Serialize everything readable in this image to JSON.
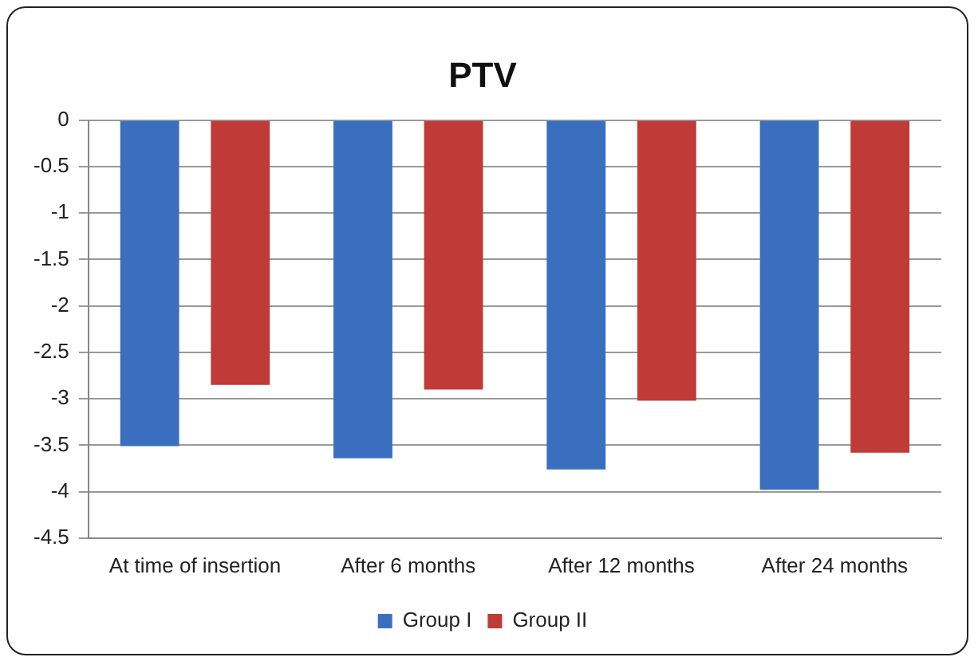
{
  "chart_data": {
    "type": "bar",
    "title": "PTV",
    "categories": [
      "At time of insertion",
      "After 6 months",
      "After 12 months",
      "After 24 months"
    ],
    "series": [
      {
        "name": "Group I",
        "color": "#3a6fbf",
        "values": [
          -3.51,
          -3.64,
          -3.76,
          -3.98
        ]
      },
      {
        "name": "Group II",
        "color": "#c03a38",
        "values": [
          -2.85,
          -2.9,
          -3.02,
          -3.58
        ]
      }
    ],
    "ylim": [
      -4.5,
      0
    ],
    "yticks": [
      0,
      -0.5,
      -1,
      -1.5,
      -2,
      -2.5,
      -3,
      -3.5,
      -4,
      -4.5
    ],
    "grid": "y",
    "legend": "bottom"
  }
}
